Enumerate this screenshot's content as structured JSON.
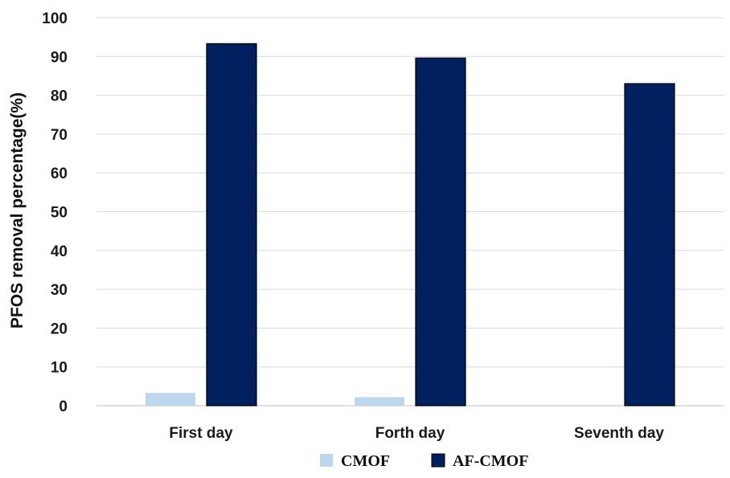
{
  "chart_data": {
    "type": "bar",
    "title": "",
    "xlabel": "",
    "ylabel": "PFOS removal percentage(%)",
    "ylim": [
      0,
      100
    ],
    "yticks": [
      0,
      10,
      20,
      30,
      40,
      50,
      60,
      70,
      80,
      90,
      100
    ],
    "grid": true,
    "legend_position": "bottom",
    "categories": [
      "First day",
      "Forth day",
      "Seventh day"
    ],
    "series": [
      {
        "name": "CMOF",
        "values": [
          3.3,
          2.2,
          0
        ],
        "color": "#bdd7ee"
      },
      {
        "name": "AF-CMOF",
        "values": [
          93.3,
          89.6,
          83.0
        ],
        "color": "#002060"
      }
    ]
  }
}
